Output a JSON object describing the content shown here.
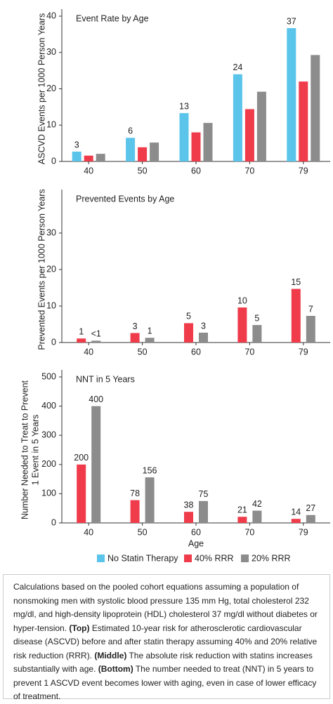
{
  "chart_data": [
    {
      "type": "bar",
      "title": "Event Rate by Age",
      "ylabel": "ASCVD Events per 1000 Person Years",
      "categories": [
        "40",
        "50",
        "60",
        "70",
        "79"
      ],
      "series": [
        {
          "name": "No Statin Therapy",
          "color": "#5bc4ea",
          "values": [
            2.7,
            6.5,
            13.3,
            24,
            36.7
          ],
          "value_labels": [
            "3",
            "6",
            "13",
            "24",
            "37"
          ]
        },
        {
          "name": "40% RRR",
          "color": "#ef3b4a",
          "values": [
            1.6,
            3.9,
            8,
            14.4,
            22
          ]
        },
        {
          "name": "20% RRR",
          "color": "#8c8c8c",
          "values": [
            2.1,
            5.2,
            10.6,
            19.2,
            29.3
          ]
        }
      ],
      "ylim": [
        0,
        40
      ],
      "yticks": [
        0,
        10,
        20,
        30,
        40
      ]
    },
    {
      "type": "bar",
      "title": "Prevented Events by Age",
      "ylabel": "Prevented Events per 1000 Person Years",
      "categories": [
        "40",
        "50",
        "60",
        "70",
        "79"
      ],
      "series": [
        {
          "color": "#ef3b4a",
          "values": [
            1.1,
            2.6,
            5.3,
            9.6,
            14.7
          ],
          "value_labels": [
            "1",
            "3",
            "5",
            "10",
            "15"
          ]
        },
        {
          "color": "#8c8c8c",
          "values": [
            0.5,
            1.3,
            2.7,
            4.8,
            7.3
          ],
          "value_labels": [
            "<1",
            "1",
            "3",
            "5",
            "7"
          ]
        }
      ],
      "ylim": [
        0,
        40
      ],
      "yticks": [
        0,
        10,
        20,
        30
      ]
    },
    {
      "type": "bar",
      "title": "NNT in 5 Years",
      "ylabel": [
        "Number Needed to Treat to Prevent",
        "1 Event in 5 Years"
      ],
      "xlabel": "Age",
      "categories": [
        "40",
        "50",
        "60",
        "70",
        "79"
      ],
      "series": [
        {
          "color": "#ef3b4a",
          "values": [
            200,
            78,
            38,
            21,
            14
          ]
        },
        {
          "color": "#8c8c8c",
          "values": [
            400,
            156,
            75,
            42,
            27
          ]
        }
      ],
      "ylim": [
        0,
        500
      ],
      "yticks": [
        0,
        100,
        200,
        300,
        400,
        500
      ],
      "show_value_labels": true
    }
  ],
  "caption": [
    {
      "text": "Calculations based on the pooled cohort equations assuming a population of nonsmoking men with systolic blood pressure 135 mm Hg, total cholesterol 232 mg/dl, and high-density lipoprotein (HDL) cholesterol 37 mg/dl without diabetes or hyper-tension. "
    },
    {
      "text": "(Top)",
      "bold": true
    },
    {
      "text": " Estimated 10-year risk for atherosclerotic cardiovascular disease (ASCVD) before and after statin therapy assuming 40% and 20% relative risk reduction (RRR). "
    },
    {
      "text": "(Middle)",
      "bold": true
    },
    {
      "text": " The absolute risk reduction with statins increases substantially with age. "
    },
    {
      "text": "(Bottom)",
      "bold": true
    },
    {
      "text": " The number needed to treat (NNT) in 5 years to prevent 1 ASCVD event becomes lower with aging, even in case of lower efficacy of treatment."
    }
  ]
}
